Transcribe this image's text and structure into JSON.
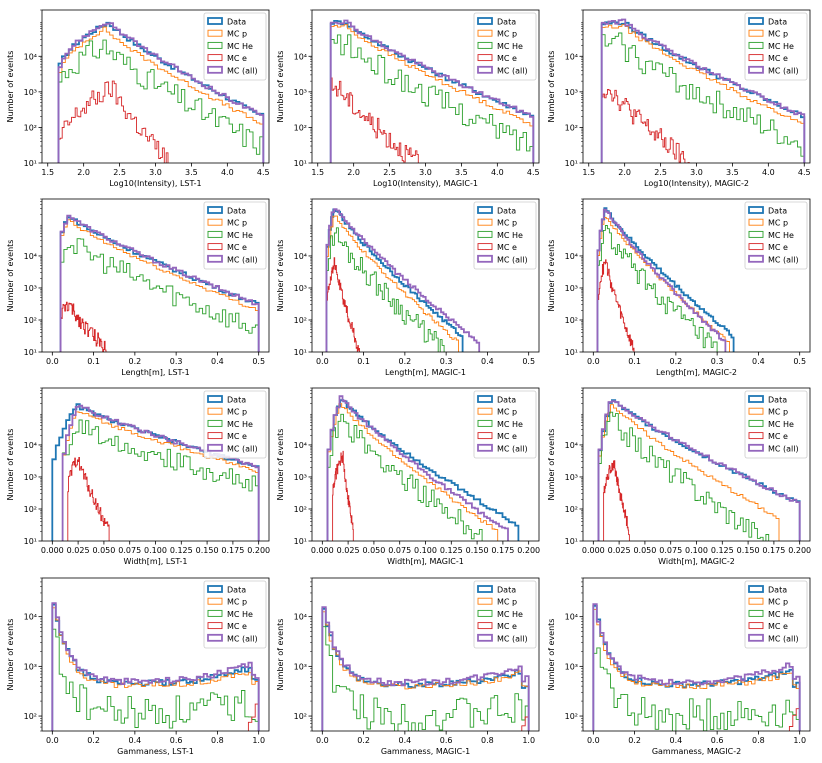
{
  "colors": {
    "Data": "#1f77b4",
    "MC p": "#ff7f0e",
    "MC He": "#2ca02c",
    "MC e": "#d62728",
    "MC (all)": "#9467bd"
  },
  "legend": [
    "Data",
    "MC p",
    "MC He",
    "MC e",
    "MC (all)"
  ],
  "ylabel": "Number of events",
  "chart_data": [
    {
      "type": "histogram",
      "xlabel": "Log10(Intensity), LST-1",
      "xlim": [
        1.42,
        4.58
      ],
      "ylim": [
        1,
        20000
      ],
      "xticks": [
        1.5,
        2.0,
        2.5,
        3.0,
        3.5,
        4.0,
        4.5
      ],
      "xtick_labels": [
        "1.5",
        "2.0",
        "2.5",
        "3.0",
        "3.5",
        "4.0",
        "4.5"
      ],
      "ytick_labels": [
        "10¹",
        "10²",
        "10³",
        "10⁴"
      ],
      "series": [
        {
          "name": "Data",
          "x0": 1.65,
          "x1": 4.5,
          "peak": 2.35,
          "pv": 9000,
          "lv": 300,
          "rv": 20
        },
        {
          "name": "MC p",
          "x0": 1.65,
          "x1": 4.5,
          "peak": 2.3,
          "pv": 6000,
          "lv": 200,
          "rv": 12
        },
        {
          "name": "MC He",
          "x0": 1.65,
          "x1": 4.5,
          "peak": 2.3,
          "pv": 2000,
          "lv": 120,
          "rv": 3,
          "noise": 0.35
        },
        {
          "name": "MC e",
          "x0": 1.65,
          "x1": 3.2,
          "peak": 2.4,
          "pv": 130,
          "lv": 2,
          "rv": 1,
          "noise": 0.3
        },
        {
          "name": "MC (all)",
          "x0": 1.65,
          "x1": 4.5,
          "peak": 2.35,
          "pv": 9500,
          "lv": 300,
          "rv": 20
        }
      ]
    },
    {
      "type": "histogram",
      "xlabel": "Log10(Intensity), MAGIC-1",
      "xlim": [
        1.42,
        4.58
      ],
      "ylim": [
        1,
        20000
      ],
      "xticks": [
        1.5,
        2.0,
        2.5,
        3.0,
        3.5,
        4.0,
        4.5
      ],
      "xtick_labels": [
        "1.5",
        "2.0",
        "2.5",
        "3.0",
        "3.5",
        "4.0",
        "4.5"
      ],
      "ytick_labels": [
        "10¹",
        "10²",
        "10³",
        "10⁴"
      ],
      "series": [
        {
          "name": "Data",
          "x0": 1.68,
          "x1": 4.5,
          "peak": 1.9,
          "pv": 9000,
          "lv": 9000,
          "rv": 20
        },
        {
          "name": "MC p",
          "x0": 1.68,
          "x1": 4.5,
          "peak": 1.9,
          "pv": 7000,
          "lv": 7000,
          "rv": 12
        },
        {
          "name": "MC He",
          "x0": 1.68,
          "x1": 4.5,
          "peak": 1.9,
          "pv": 2200,
          "lv": 2200,
          "rv": 3,
          "noise": 0.35
        },
        {
          "name": "MC e",
          "x0": 1.68,
          "x1": 2.9,
          "peak": 1.8,
          "pv": 130,
          "lv": 130,
          "rv": 1,
          "noise": 0.3
        },
        {
          "name": "MC (all)",
          "x0": 1.68,
          "x1": 4.5,
          "peak": 1.9,
          "pv": 9500,
          "lv": 9500,
          "rv": 20
        }
      ]
    },
    {
      "type": "histogram",
      "xlabel": "Log10(Intensity), MAGIC-2",
      "xlim": [
        1.42,
        4.58
      ],
      "ylim": [
        1,
        20000
      ],
      "xticks": [
        1.5,
        2.0,
        2.5,
        3.0,
        3.5,
        4.0,
        4.5
      ],
      "xtick_labels": [
        "1.5",
        "2.0",
        "2.5",
        "3.0",
        "3.5",
        "4.0",
        "4.5"
      ],
      "ytick_labels": [
        "10¹",
        "10²",
        "10³",
        "10⁴"
      ],
      "series": [
        {
          "name": "Data",
          "x0": 1.68,
          "x1": 4.5,
          "peak": 2.0,
          "pv": 9000,
          "lv": 8000,
          "rv": 20
        },
        {
          "name": "MC p",
          "x0": 1.68,
          "x1": 4.5,
          "peak": 2.0,
          "pv": 7000,
          "lv": 6000,
          "rv": 12
        },
        {
          "name": "MC He",
          "x0": 1.68,
          "x1": 4.5,
          "peak": 1.95,
          "pv": 2200,
          "lv": 2000,
          "rv": 3,
          "noise": 0.35
        },
        {
          "name": "MC e",
          "x0": 1.68,
          "x1": 2.9,
          "peak": 1.8,
          "pv": 130,
          "lv": 100,
          "rv": 1,
          "noise": 0.3
        },
        {
          "name": "MC (all)",
          "x0": 1.68,
          "x1": 4.5,
          "peak": 2.0,
          "pv": 9500,
          "lv": 8500,
          "rv": 20
        }
      ]
    },
    {
      "type": "histogram",
      "xlabel": "Length[m], LST-1",
      "xlim": [
        -0.025,
        0.525
      ],
      "ylim": [
        1,
        60000
      ],
      "xticks": [
        0.0,
        0.1,
        0.2,
        0.3,
        0.4,
        0.5
      ],
      "xtick_labels": [
        "0.0",
        "0.1",
        "0.2",
        "0.3",
        "0.4",
        "0.5"
      ],
      "ytick_labels": [
        "10¹",
        "10²",
        "10³",
        "10⁴"
      ],
      "series": [
        {
          "name": "Data",
          "x0": 0.02,
          "x1": 0.5,
          "peak": 0.04,
          "pv": 18000,
          "lv": 2000,
          "rv": 30
        },
        {
          "name": "MC p",
          "x0": 0.02,
          "x1": 0.5,
          "peak": 0.04,
          "pv": 13000,
          "lv": 1500,
          "rv": 20
        },
        {
          "name": "MC He",
          "x0": 0.02,
          "x1": 0.5,
          "peak": 0.04,
          "pv": 3000,
          "lv": 500,
          "rv": 5,
          "noise": 0.35
        },
        {
          "name": "MC e",
          "x0": 0.02,
          "x1": 0.14,
          "peak": 0.04,
          "pv": 30,
          "lv": 10,
          "rv": 1,
          "noise": 0.25
        },
        {
          "name": "MC (all)",
          "x0": 0.02,
          "x1": 0.5,
          "peak": 0.04,
          "pv": 19000,
          "lv": 2000,
          "rv": 30
        }
      ]
    },
    {
      "type": "histogram",
      "xlabel": "Length[m], MAGIC-1",
      "xlim": [
        -0.025,
        0.525
      ],
      "ylim": [
        1,
        60000
      ],
      "xticks": [
        0.0,
        0.1,
        0.2,
        0.3,
        0.4,
        0.5
      ],
      "xtick_labels": [
        "0.0",
        "0.1",
        "0.2",
        "0.3",
        "0.4",
        "0.5"
      ],
      "ytick_labels": [
        "10¹",
        "10²",
        "10³",
        "10⁴"
      ],
      "series": [
        {
          "name": "Data",
          "x0": 0.01,
          "x1": 0.34,
          "peak": 0.03,
          "pv": 35000,
          "lv": 300,
          "rv": 3
        },
        {
          "name": "MC p",
          "x0": 0.01,
          "x1": 0.33,
          "peak": 0.03,
          "pv": 20000,
          "lv": 200,
          "rv": 2
        },
        {
          "name": "MC He",
          "x0": 0.01,
          "x1": 0.3,
          "peak": 0.03,
          "pv": 6000,
          "lv": 100,
          "rv": 1,
          "noise": 0.35
        },
        {
          "name": "MC e",
          "x0": 0.01,
          "x1": 0.09,
          "peak": 0.03,
          "pv": 600,
          "lv": 20,
          "rv": 1,
          "noise": 0.2
        },
        {
          "name": "MC (all)",
          "x0": 0.01,
          "x1": 0.38,
          "peak": 0.03,
          "pv": 36000,
          "lv": 300,
          "rv": 2
        }
      ]
    },
    {
      "type": "histogram",
      "xlabel": "Length[m], MAGIC-2",
      "xlim": [
        -0.025,
        0.525
      ],
      "ylim": [
        1,
        60000
      ],
      "xticks": [
        0.0,
        0.1,
        0.2,
        0.3,
        0.4,
        0.5
      ],
      "xtick_labels": [
        "0.0",
        "0.1",
        "0.2",
        "0.3",
        "0.4",
        "0.5"
      ],
      "ytick_labels": [
        "10¹",
        "10²",
        "10³",
        "10⁴"
      ],
      "series": [
        {
          "name": "Data",
          "x0": 0.01,
          "x1": 0.34,
          "peak": 0.03,
          "pv": 32000,
          "lv": 300,
          "rv": 3
        },
        {
          "name": "MC p",
          "x0": 0.01,
          "x1": 0.33,
          "peak": 0.03,
          "pv": 20000,
          "lv": 200,
          "rv": 2
        },
        {
          "name": "MC He",
          "x0": 0.01,
          "x1": 0.3,
          "peak": 0.03,
          "pv": 6000,
          "lv": 100,
          "rv": 1,
          "noise": 0.35
        },
        {
          "name": "MC e",
          "x0": 0.01,
          "x1": 0.1,
          "peak": 0.03,
          "pv": 700,
          "lv": 20,
          "rv": 1,
          "noise": 0.2
        },
        {
          "name": "MC (all)",
          "x0": 0.01,
          "x1": 0.32,
          "peak": 0.03,
          "pv": 33000,
          "lv": 300,
          "rv": 2
        }
      ]
    },
    {
      "type": "histogram",
      "xlabel": "Width[m], LST-1",
      "xlim": [
        -0.01,
        0.21
      ],
      "ylim": [
        1,
        60000
      ],
      "xticks": [
        0.0,
        0.025,
        0.05,
        0.075,
        0.1,
        0.125,
        0.15,
        0.175,
        0.2
      ],
      "xtick_labels": [
        "0.000",
        "0.025",
        "0.050",
        "0.075",
        "0.100",
        "0.125",
        "0.150",
        "0.175",
        "0.200"
      ],
      "ytick_labels": [
        "10¹",
        "10²",
        "10³",
        "10⁴"
      ],
      "series": [
        {
          "name": "Data",
          "x0": 0.0,
          "x1": 0.2,
          "peak": 0.025,
          "pv": 17000,
          "lv": 100,
          "rv": 200
        },
        {
          "name": "MC p",
          "x0": 0.01,
          "x1": 0.2,
          "peak": 0.025,
          "pv": 12000,
          "lv": 100,
          "rv": 150
        },
        {
          "name": "MC He",
          "x0": 0.01,
          "x1": 0.2,
          "peak": 0.025,
          "pv": 4500,
          "lv": 100,
          "rv": 50,
          "noise": 0.3
        },
        {
          "name": "MC e",
          "x0": 0.015,
          "x1": 0.055,
          "peak": 0.025,
          "pv": 400,
          "lv": 30,
          "rv": 2,
          "noise": 0.2
        },
        {
          "name": "MC (all)",
          "x0": 0.01,
          "x1": 0.2,
          "peak": 0.025,
          "pv": 18000,
          "lv": 100,
          "rv": 200
        }
      ]
    },
    {
      "type": "histogram",
      "xlabel": "Width[m], MAGIC-1",
      "xlim": [
        -0.01,
        0.21
      ],
      "ylim": [
        1,
        60000
      ],
      "xticks": [
        0.0,
        0.025,
        0.05,
        0.075,
        0.1,
        0.125,
        0.15,
        0.175,
        0.2
      ],
      "xtick_labels": [
        "0.000",
        "0.025",
        "0.050",
        "0.075",
        "0.100",
        "0.125",
        "0.150",
        "0.175",
        "0.200"
      ],
      "ytick_labels": [
        "10¹",
        "10²",
        "10³",
        "10⁴"
      ],
      "series": [
        {
          "name": "Data",
          "x0": 0.005,
          "x1": 0.19,
          "peak": 0.018,
          "pv": 30000,
          "lv": 100,
          "rv": 3
        },
        {
          "name": "MC p",
          "x0": 0.005,
          "x1": 0.17,
          "peak": 0.018,
          "pv": 20000,
          "lv": 100,
          "rv": 2
        },
        {
          "name": "MC He",
          "x0": 0.005,
          "x1": 0.16,
          "peak": 0.018,
          "pv": 7000,
          "lv": 100,
          "rv": 1,
          "noise": 0.35
        },
        {
          "name": "MC e",
          "x0": 0.01,
          "x1": 0.03,
          "peak": 0.02,
          "pv": 500,
          "lv": 20,
          "rv": 2,
          "noise": 0.2
        },
        {
          "name": "MC (all)",
          "x0": 0.005,
          "x1": 0.18,
          "peak": 0.018,
          "pv": 32000,
          "lv": 100,
          "rv": 2
        }
      ]
    },
    {
      "type": "histogram",
      "xlabel": "Width[m], MAGIC-2",
      "xlim": [
        -0.01,
        0.21
      ],
      "ylim": [
        1,
        60000
      ],
      "xticks": [
        0.0,
        0.025,
        0.05,
        0.075,
        0.1,
        0.125,
        0.15,
        0.175,
        0.2
      ],
      "xtick_labels": [
        "0.000",
        "0.025",
        "0.050",
        "0.075",
        "0.100",
        "0.125",
        "0.150",
        "0.175",
        "0.200"
      ],
      "ytick_labels": [
        "10¹",
        "10²",
        "10³",
        "10⁴"
      ],
      "series": [
        {
          "name": "Data",
          "x0": 0.005,
          "x1": 0.2,
          "peak": 0.018,
          "pv": 28000,
          "lv": 80,
          "rv": 15
        },
        {
          "name": "MC p",
          "x0": 0.005,
          "x1": 0.18,
          "peak": 0.018,
          "pv": 20000,
          "lv": 80,
          "rv": 5
        },
        {
          "name": "MC He",
          "x0": 0.005,
          "x1": 0.17,
          "peak": 0.018,
          "pv": 7000,
          "lv": 80,
          "rv": 1,
          "noise": 0.35
        },
        {
          "name": "MC e",
          "x0": 0.01,
          "x1": 0.035,
          "peak": 0.02,
          "pv": 300,
          "lv": 20,
          "rv": 2,
          "noise": 0.2
        },
        {
          "name": "MC (all)",
          "x0": 0.005,
          "x1": 0.2,
          "peak": 0.018,
          "pv": 30000,
          "lv": 80,
          "rv": 15
        }
      ]
    },
    {
      "type": "histogram",
      "xlabel": "Gammaness, LST-1",
      "xlim": [
        -0.05,
        1.05
      ],
      "ylim": [
        50,
        60000
      ],
      "xticks": [
        0.0,
        0.2,
        0.4,
        0.6,
        0.8,
        1.0
      ],
      "xtick_labels": [
        "0.0",
        "0.2",
        "0.4",
        "0.6",
        "0.8",
        "1.0"
      ],
      "ytick_labels": [
        "10²",
        "10³",
        "10⁴"
      ],
      "series": [
        {
          "name": "Data",
          "x0": 0.0,
          "x1": 1.0,
          "shape": "gam",
          "v0": 32000,
          "vmin": 450,
          "vend": 1100
        },
        {
          "name": "MC p",
          "x0": 0.0,
          "x1": 1.0,
          "shape": "gam",
          "v0": 25000,
          "vmin": 420,
          "vend": 900
        },
        {
          "name": "MC He",
          "x0": 0.0,
          "x1": 1.0,
          "shape": "gam",
          "v0": 8000,
          "vmin": 110,
          "vend": 200,
          "noise": 0.35
        },
        {
          "name": "MC e",
          "x0": 0.0,
          "x1": 1.0,
          "shape": "gamE",
          "v0": 5,
          "vmin": 5,
          "vend": 200
        },
        {
          "name": "MC (all)",
          "x0": 0.0,
          "x1": 1.0,
          "shape": "gam",
          "v0": 33000,
          "vmin": 500,
          "vend": 1300
        }
      ]
    },
    {
      "type": "histogram",
      "xlabel": "Gammaness, MAGIC-1",
      "xlim": [
        -0.05,
        1.05
      ],
      "ylim": [
        50,
        60000
      ],
      "xticks": [
        0.0,
        0.2,
        0.4,
        0.6,
        0.8,
        1.0
      ],
      "xtick_labels": [
        "0.0",
        "0.2",
        "0.4",
        "0.6",
        "0.8",
        "1.0"
      ],
      "ytick_labels": [
        "10²",
        "10³",
        "10⁴"
      ],
      "series": [
        {
          "name": "Data",
          "x0": 0.0,
          "x1": 1.0,
          "shape": "gam",
          "v0": 24000,
          "vmin": 420,
          "vend": 900
        },
        {
          "name": "MC p",
          "x0": 0.0,
          "x1": 1.0,
          "shape": "gam",
          "v0": 19000,
          "vmin": 400,
          "vend": 800
        },
        {
          "name": "MC He",
          "x0": 0.0,
          "x1": 1.0,
          "shape": "gam",
          "v0": 6000,
          "vmin": 100,
          "vend": 150,
          "noise": 0.35
        },
        {
          "name": "MC e",
          "x0": 0.0,
          "x1": 1.0,
          "shape": "gamE",
          "v0": 5,
          "vmin": 5,
          "vend": 120
        },
        {
          "name": "MC (all)",
          "x0": 0.0,
          "x1": 1.0,
          "shape": "gam",
          "v0": 25000,
          "vmin": 470,
          "vend": 1200
        }
      ]
    },
    {
      "type": "histogram",
      "xlabel": "Gammaness, MAGIC-2",
      "xlim": [
        -0.05,
        1.05
      ],
      "ylim": [
        50,
        60000
      ],
      "xticks": [
        0.0,
        0.2,
        0.4,
        0.6,
        0.8,
        1.0
      ],
      "xtick_labels": [
        "0.0",
        "0.2",
        "0.4",
        "0.6",
        "0.8",
        "1.0"
      ],
      "ytick_labels": [
        "10²",
        "10³",
        "10⁴"
      ],
      "series": [
        {
          "name": "Data",
          "x0": 0.0,
          "x1": 1.0,
          "shape": "gam",
          "v0": 26000,
          "vmin": 430,
          "vend": 900
        },
        {
          "name": "MC p",
          "x0": 0.0,
          "x1": 1.0,
          "shape": "gam",
          "v0": 20000,
          "vmin": 400,
          "vend": 800
        },
        {
          "name": "MC He",
          "x0": 0.0,
          "x1": 1.0,
          "shape": "gam",
          "v0": 6000,
          "vmin": 100,
          "vend": 150,
          "noise": 0.35
        },
        {
          "name": "MC e",
          "x0": 0.0,
          "x1": 1.0,
          "shape": "gamE",
          "v0": 5,
          "vmin": 5,
          "vend": 200
        },
        {
          "name": "MC (all)",
          "x0": 0.0,
          "x1": 1.0,
          "shape": "gam",
          "v0": 27000,
          "vmin": 480,
          "vend": 1300
        }
      ]
    }
  ]
}
